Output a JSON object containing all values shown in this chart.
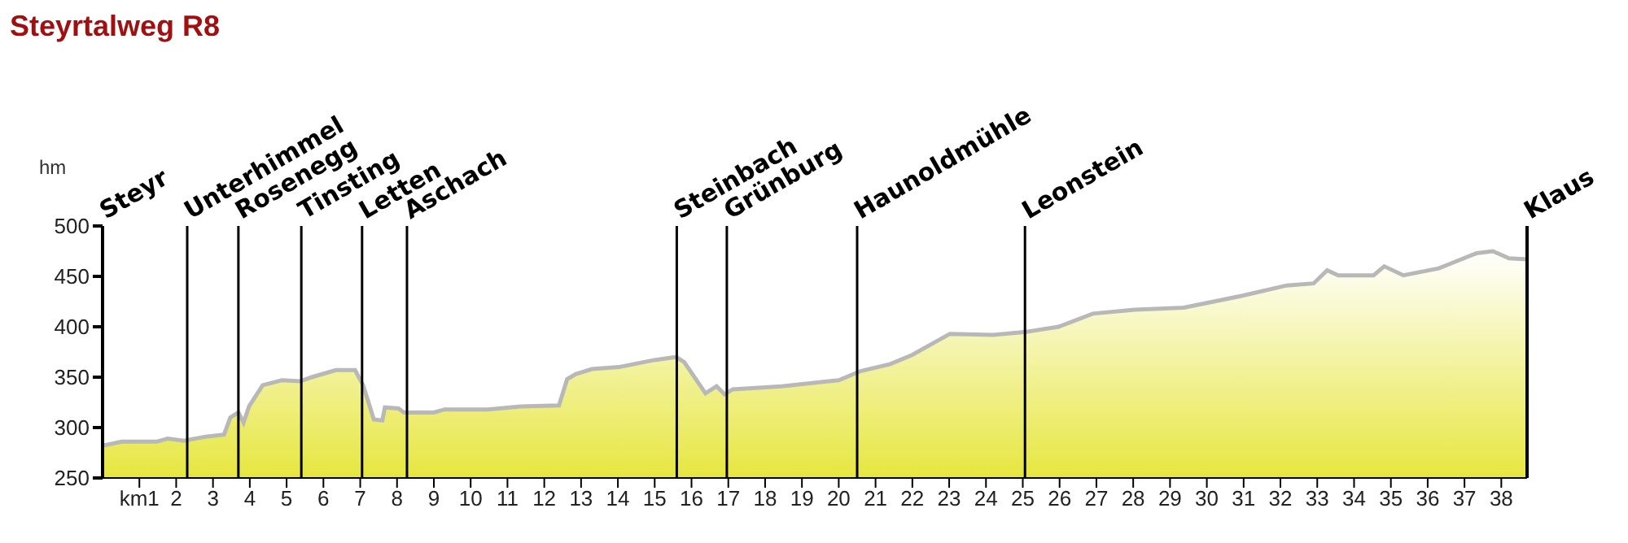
{
  "chart_data": {
    "type": "area",
    "title": "Steyrtalweg R8",
    "ylabel": "hm",
    "x": [
      0,
      0.52,
      1.47,
      1.77,
      2.21,
      2.8,
      3.3,
      3.47,
      3.69,
      3.83,
      3.98,
      4.35,
      4.87,
      5.38,
      5.68,
      6.34,
      6.86,
      7.08,
      7.37,
      7.6,
      7.67,
      8.04,
      8.19,
      9.0,
      9.29,
      10.47,
      11.36,
      12.4,
      12.62,
      12.85,
      13.29,
      14.03,
      14.99,
      15.58,
      15.8,
      16.38,
      16.68,
      16.9,
      17.12,
      18.45,
      20.0,
      20.59,
      21.4,
      21.99,
      23.02,
      24.2,
      25.09,
      25.97,
      26.9,
      28.04,
      29.37,
      30.99,
      32.17,
      32.9,
      33.27,
      33.57,
      34.53,
      34.82,
      35.34,
      36.3,
      37.33,
      37.77,
      38.21,
      38.69
    ],
    "series": [
      {
        "color": "#b8b8b8",
        "values": [
          282,
          286,
          286,
          289,
          287,
          291,
          293,
          310,
          315,
          305,
          321,
          342,
          347,
          346,
          350,
          357,
          357,
          342,
          308,
          307,
          320,
          319,
          315,
          315,
          318,
          318,
          321,
          322,
          348,
          353,
          358,
          360,
          367,
          370,
          365,
          334,
          341,
          333,
          338,
          341,
          347,
          356,
          363,
          372,
          393,
          392,
          395,
          400,
          413,
          417,
          419,
          431,
          441,
          443,
          456,
          451,
          451,
          460,
          451,
          458,
          473,
          475,
          468,
          467
        ]
      }
    ],
    "xlim": [
      0,
      38.7
    ],
    "xticks": [
      {
        "value": 1,
        "label": "km1"
      },
      2,
      3,
      4,
      5,
      6,
      7,
      8,
      9,
      10,
      11,
      12,
      13,
      14,
      15,
      16,
      17,
      18,
      19,
      20,
      21,
      22,
      23,
      24,
      25,
      26,
      27,
      28,
      29,
      30,
      31,
      32,
      33,
      34,
      35,
      36,
      37,
      38
    ],
    "ylim": [
      250,
      500
    ],
    "yticks": [
      250,
      300,
      350,
      400,
      450,
      500
    ],
    "grid": false,
    "legend": false,
    "annotations": [
      "Steyr",
      "Klaus"
    ],
    "ref_lines": [
      {
        "axis": "x",
        "value": 2.3,
        "label": "Unterhimmel",
        "color": "#000000"
      },
      {
        "axis": "x",
        "value": 3.69,
        "label": "Rosenegg",
        "color": "#000000"
      },
      {
        "axis": "x",
        "value": 5.4,
        "label": "Tinsting",
        "color": "#000000"
      },
      {
        "axis": "x",
        "value": 7.05,
        "label": "Letten",
        "color": "#000000"
      },
      {
        "axis": "x",
        "value": 8.27,
        "label": "Aschach",
        "color": "#000000"
      },
      {
        "axis": "x",
        "value": 15.6,
        "label": "Steinbach",
        "color": "#000000"
      },
      {
        "axis": "x",
        "value": 16.96,
        "label": "Grünburg",
        "color": "#000000"
      },
      {
        "axis": "x",
        "value": 20.5,
        "label": "Haunoldmühle",
        "color": "#000000"
      },
      {
        "axis": "x",
        "value": 25.06,
        "label": "Leonstein",
        "color": "#000000"
      }
    ]
  }
}
